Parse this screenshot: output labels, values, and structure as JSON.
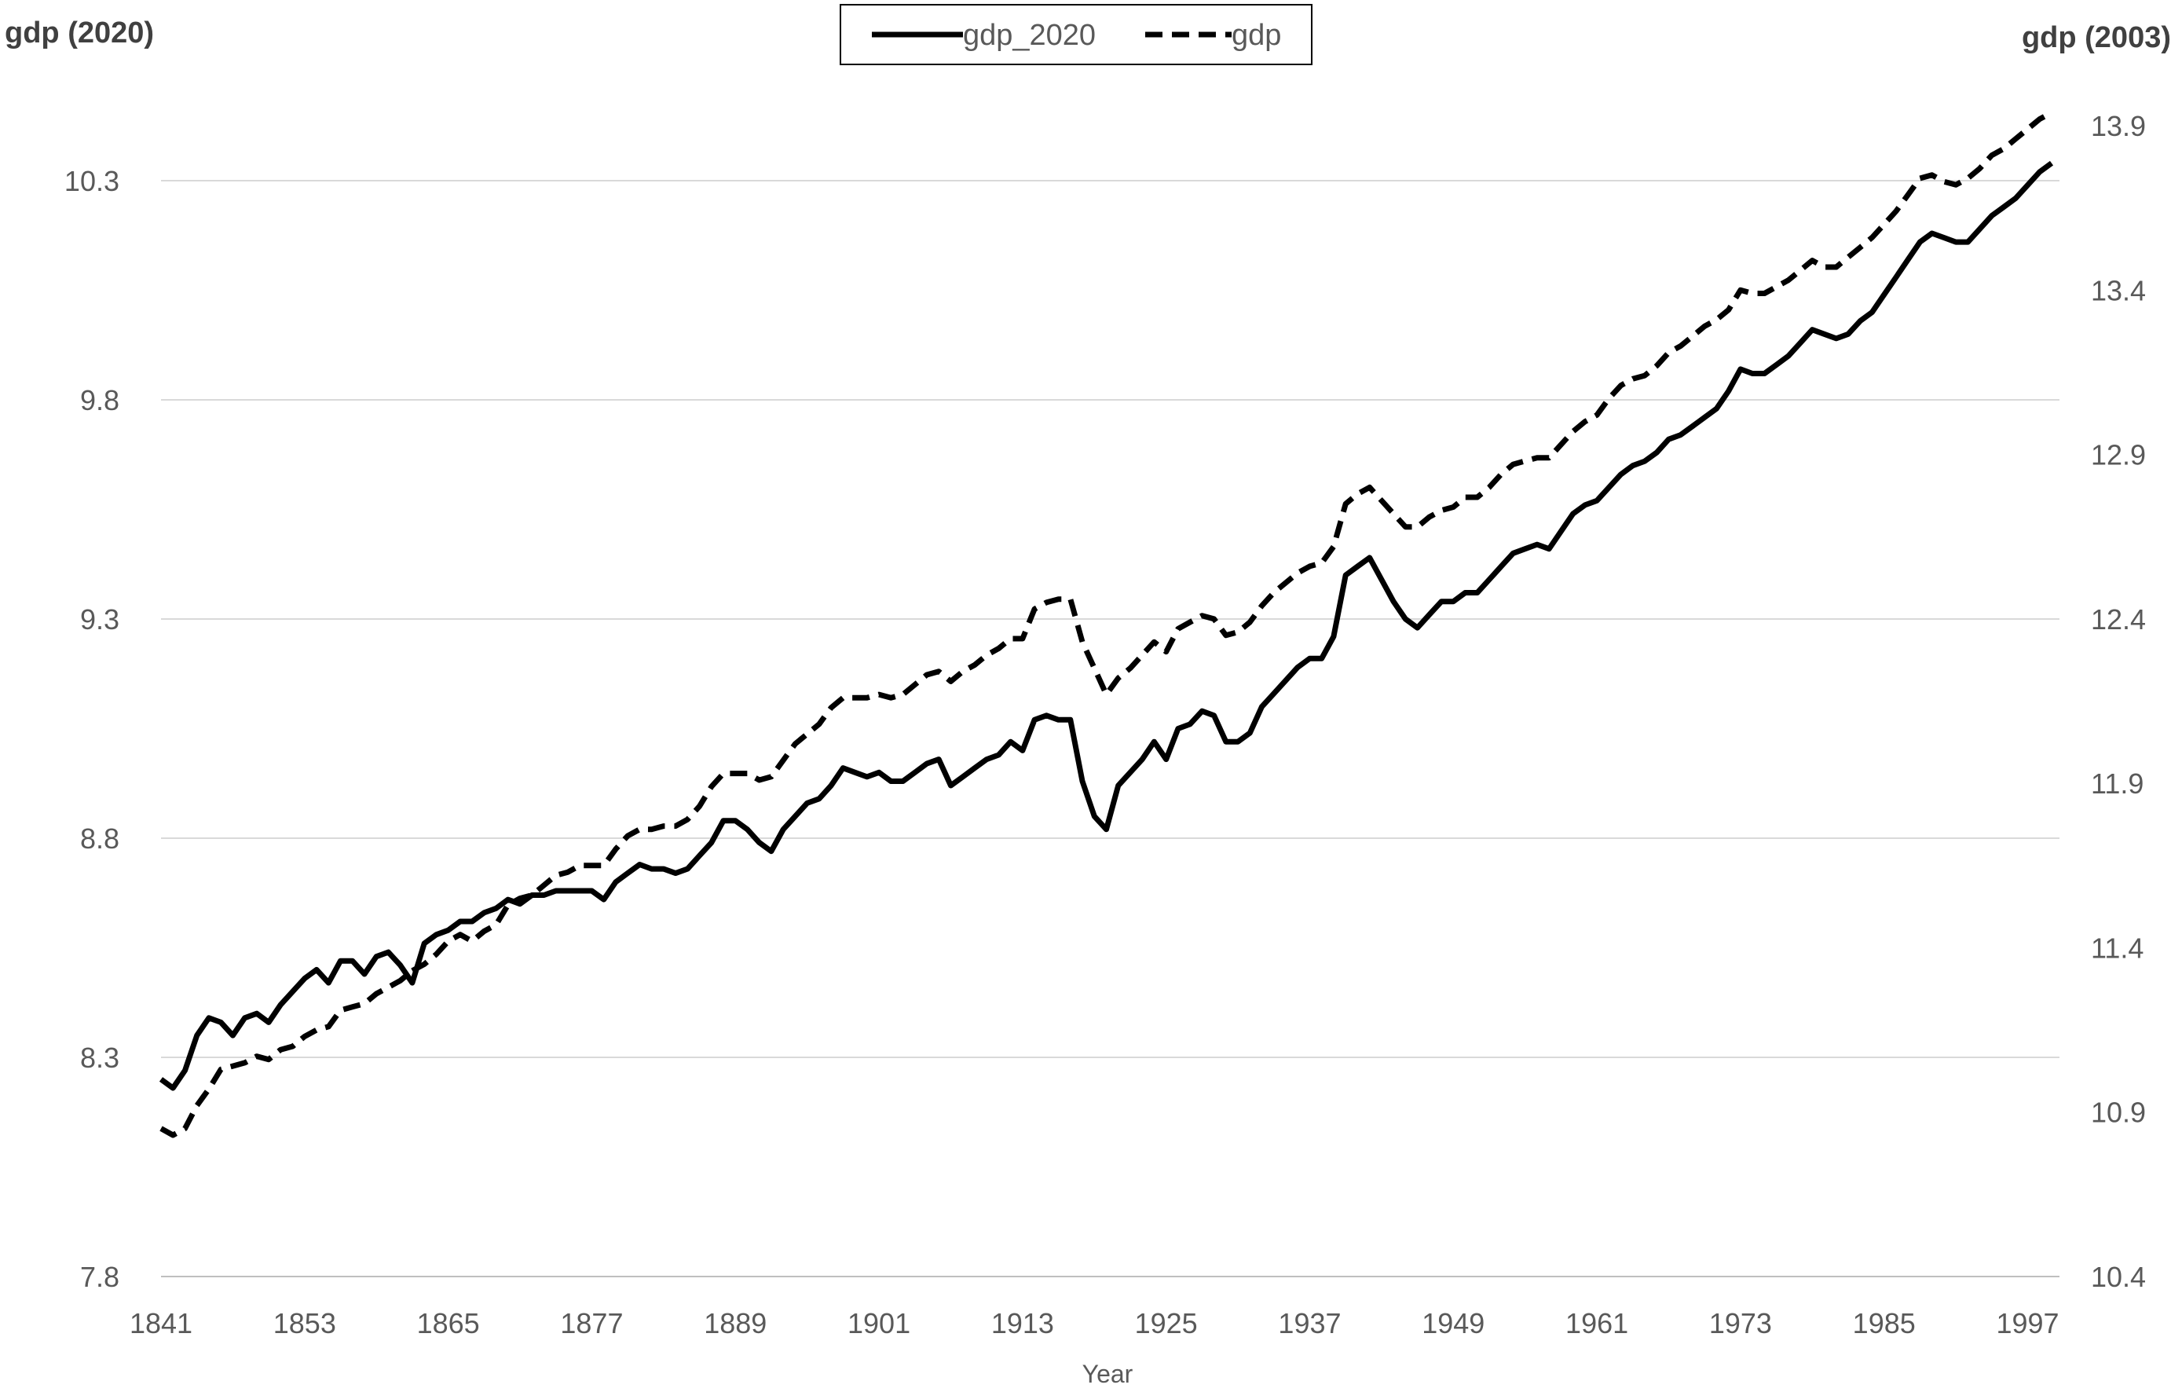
{
  "chart_data": {
    "type": "line",
    "title": "",
    "xlabel": "Year",
    "ylabel_left": "gdp (2020)",
    "ylabel_right": "gdp (2003)",
    "x_ticks": [
      "1841",
      "1853",
      "1865",
      "1877",
      "1889",
      "1901",
      "1913",
      "1925",
      "1937",
      "1949",
      "1961",
      "1973",
      "1985",
      "1997"
    ],
    "y_left_ticks": [
      "7.8",
      "8.3",
      "8.8",
      "9.3",
      "9.8",
      "10.3"
    ],
    "y_right_ticks": [
      "10.4",
      "10.9",
      "11.4",
      "11.9",
      "12.4",
      "12.9",
      "13.4",
      "13.9"
    ],
    "ylim_left": [
      7.8,
      10.3
    ],
    "ylim_right": [
      10.4,
      13.9
    ],
    "xlim": [
      1841,
      1999
    ],
    "grid": true,
    "legend_position": "top-center",
    "series": [
      {
        "name": "gdp_2020",
        "axis": "left",
        "style": "solid",
        "color": "#000000",
        "x": [
          1841,
          1842,
          1843,
          1844,
          1845,
          1846,
          1847,
          1848,
          1849,
          1850,
          1851,
          1852,
          1853,
          1854,
          1855,
          1856,
          1857,
          1858,
          1859,
          1860,
          1861,
          1862,
          1863,
          1864,
          1865,
          1866,
          1867,
          1868,
          1869,
          1870,
          1871,
          1872,
          1873,
          1874,
          1875,
          1876,
          1877,
          1878,
          1879,
          1880,
          1881,
          1882,
          1883,
          1884,
          1885,
          1886,
          1887,
          1888,
          1889,
          1890,
          1891,
          1892,
          1893,
          1894,
          1895,
          1896,
          1897,
          1898,
          1899,
          1900,
          1901,
          1902,
          1903,
          1904,
          1905,
          1906,
          1907,
          1908,
          1909,
          1910,
          1911,
          1912,
          1913,
          1914,
          1915,
          1916,
          1917,
          1918,
          1919,
          1920,
          1921,
          1922,
          1923,
          1924,
          1925,
          1926,
          1927,
          1928,
          1929,
          1930,
          1931,
          1932,
          1933,
          1934,
          1935,
          1936,
          1937,
          1938,
          1939,
          1940,
          1941,
          1942,
          1943,
          1944,
          1945,
          1946,
          1947,
          1948,
          1949,
          1950,
          1951,
          1952,
          1953,
          1954,
          1955,
          1956,
          1957,
          1958,
          1959,
          1960,
          1961,
          1962,
          1963,
          1964,
          1965,
          1966,
          1967,
          1968,
          1969,
          1970,
          1971,
          1972,
          1973,
          1974,
          1975,
          1976,
          1977,
          1978,
          1979,
          1980,
          1981,
          1982,
          1983,
          1984,
          1985,
          1986,
          1987,
          1988,
          1989,
          1990,
          1991,
          1992,
          1993,
          1994,
          1995,
          1996,
          1997,
          1998,
          1999
        ],
        "values": [
          8.25,
          8.23,
          8.27,
          8.35,
          8.39,
          8.38,
          8.35,
          8.39,
          8.4,
          8.38,
          8.42,
          8.45,
          8.48,
          8.5,
          8.47,
          8.52,
          8.52,
          8.49,
          8.53,
          8.54,
          8.51,
          8.47,
          8.56,
          8.58,
          8.59,
          8.61,
          8.61,
          8.63,
          8.64,
          8.66,
          8.65,
          8.67,
          8.67,
          8.68,
          8.68,
          8.68,
          8.68,
          8.66,
          8.7,
          8.72,
          8.74,
          8.73,
          8.73,
          8.72,
          8.73,
          8.76,
          8.79,
          8.84,
          8.84,
          8.82,
          8.79,
          8.77,
          8.82,
          8.85,
          8.88,
          8.89,
          8.92,
          8.96,
          8.95,
          8.94,
          8.95,
          8.93,
          8.93,
          8.95,
          8.97,
          8.98,
          8.92,
          8.94,
          8.96,
          8.98,
          8.99,
          9.02,
          9.0,
          9.07,
          9.08,
          9.07,
          9.07,
          8.93,
          8.85,
          8.82,
          8.92,
          8.95,
          8.98,
          9.02,
          8.98,
          9.05,
          9.06,
          9.09,
          9.08,
          9.02,
          9.02,
          9.04,
          9.1,
          9.13,
          9.16,
          9.19,
          9.21,
          9.21,
          9.26,
          9.4,
          9.42,
          9.44,
          9.39,
          9.34,
          9.3,
          9.28,
          9.31,
          9.34,
          9.34,
          9.36,
          9.36,
          9.39,
          9.42,
          9.45,
          9.46,
          9.47,
          9.46,
          9.5,
          9.54,
          9.56,
          9.57,
          9.6,
          9.63,
          9.65,
          9.66,
          9.68,
          9.71,
          9.72,
          9.74,
          9.76,
          9.78,
          9.82,
          9.87,
          9.86,
          9.86,
          9.88,
          9.9,
          9.93,
          9.96,
          9.95,
          9.94,
          9.95,
          9.98,
          10.0,
          10.04,
          10.08,
          10.12,
          10.16,
          10.18,
          10.17,
          10.16,
          10.16,
          10.19,
          10.22,
          10.24,
          10.26,
          10.29,
          10.32,
          10.34
        ]
      },
      {
        "name": "gdp",
        "axis": "right",
        "style": "dashed",
        "color": "#000000",
        "x": [
          1841,
          1842,
          1843,
          1844,
          1845,
          1846,
          1847,
          1848,
          1849,
          1850,
          1851,
          1852,
          1853,
          1854,
          1855,
          1856,
          1857,
          1858,
          1859,
          1860,
          1861,
          1862,
          1863,
          1864,
          1865,
          1866,
          1867,
          1868,
          1869,
          1870,
          1871,
          1872,
          1873,
          1874,
          1875,
          1876,
          1877,
          1878,
          1879,
          1880,
          1881,
          1882,
          1883,
          1884,
          1885,
          1886,
          1887,
          1888,
          1889,
          1890,
          1891,
          1892,
          1893,
          1894,
          1895,
          1896,
          1897,
          1898,
          1899,
          1900,
          1901,
          1902,
          1903,
          1904,
          1905,
          1906,
          1907,
          1908,
          1909,
          1910,
          1911,
          1912,
          1913,
          1914,
          1915,
          1916,
          1917,
          1918,
          1919,
          1920,
          1921,
          1922,
          1923,
          1924,
          1925,
          1926,
          1927,
          1928,
          1929,
          1930,
          1931,
          1932,
          1933,
          1934,
          1935,
          1936,
          1937,
          1938,
          1939,
          1940,
          1941,
          1942,
          1943,
          1944,
          1945,
          1946,
          1947,
          1948,
          1949,
          1950,
          1951,
          1952,
          1953,
          1954,
          1955,
          1956,
          1957,
          1958,
          1959,
          1960,
          1961,
          1962,
          1963,
          1964,
          1965,
          1966,
          1967,
          1968,
          1969,
          1970,
          1971,
          1972,
          1973,
          1974,
          1975,
          1976,
          1977,
          1978,
          1979,
          1980,
          1981,
          1982,
          1983,
          1984,
          1985,
          1986,
          1987,
          1988,
          1989,
          1990,
          1991,
          1992,
          1993,
          1994,
          1995,
          1996,
          1997,
          1998,
          1999
        ],
        "values": [
          10.85,
          10.83,
          10.85,
          10.92,
          10.97,
          11.03,
          11.04,
          11.05,
          11.07,
          11.06,
          11.09,
          11.1,
          11.13,
          11.15,
          11.16,
          11.21,
          11.22,
          11.23,
          11.26,
          11.28,
          11.3,
          11.33,
          11.35,
          11.38,
          11.42,
          11.44,
          11.42,
          11.45,
          11.47,
          11.53,
          11.55,
          11.56,
          11.59,
          11.62,
          11.63,
          11.65,
          11.65,
          11.65,
          11.7,
          11.74,
          11.76,
          11.76,
          11.77,
          11.77,
          11.79,
          11.83,
          11.89,
          11.93,
          11.93,
          11.93,
          11.91,
          11.92,
          11.97,
          12.02,
          12.05,
          12.08,
          12.13,
          12.16,
          12.16,
          12.16,
          12.17,
          12.16,
          12.17,
          12.2,
          12.23,
          12.24,
          12.21,
          12.24,
          12.26,
          12.29,
          12.31,
          12.34,
          12.34,
          12.43,
          12.45,
          12.46,
          12.46,
          12.33,
          12.25,
          12.17,
          12.22,
          12.25,
          12.29,
          12.33,
          12.3,
          12.37,
          12.39,
          12.41,
          12.4,
          12.35,
          12.36,
          12.39,
          12.44,
          12.48,
          12.51,
          12.54,
          12.56,
          12.57,
          12.62,
          12.75,
          12.78,
          12.8,
          12.76,
          12.72,
          12.68,
          12.68,
          12.71,
          12.73,
          12.74,
          12.77,
          12.77,
          12.8,
          12.84,
          12.87,
          12.88,
          12.89,
          12.89,
          12.93,
          12.97,
          13.0,
          13.02,
          13.07,
          13.11,
          13.13,
          13.14,
          13.17,
          13.21,
          13.23,
          13.26,
          13.29,
          13.31,
          13.34,
          13.4,
          13.39,
          13.39,
          13.41,
          13.43,
          13.46,
          13.49,
          13.47,
          13.47,
          13.5,
          13.53,
          13.56,
          13.6,
          13.64,
          13.69,
          13.74,
          13.75,
          13.73,
          13.72,
          13.74,
          13.77,
          13.81,
          13.83,
          13.86,
          13.89,
          13.92,
          13.94
        ]
      }
    ]
  }
}
